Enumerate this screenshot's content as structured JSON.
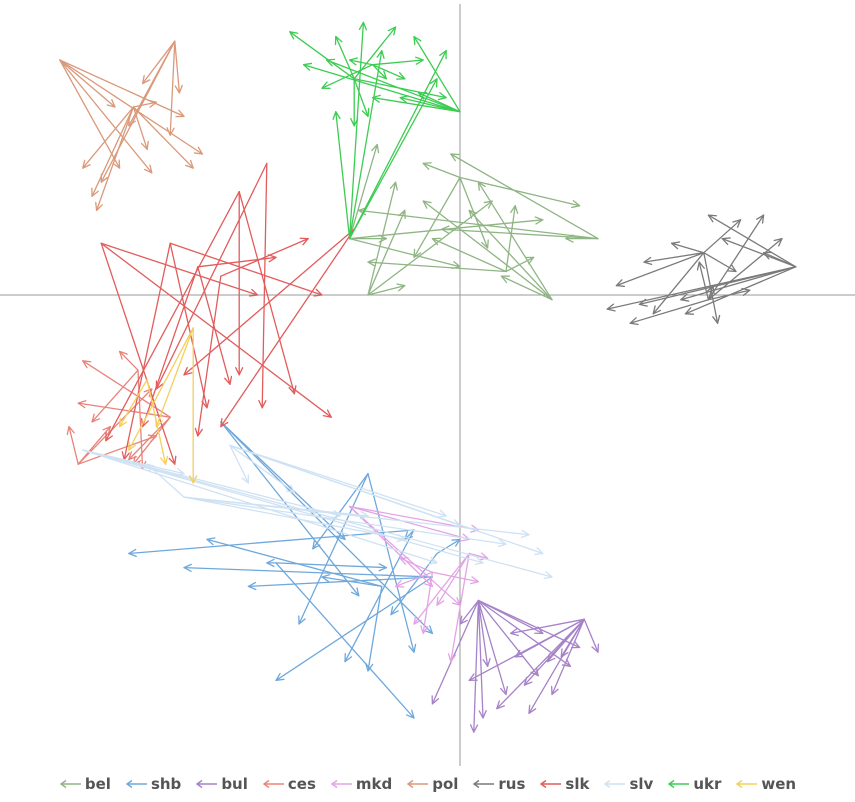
{
  "chart_data": {
    "type": "scatter",
    "title": "",
    "xlabel": "",
    "ylabel": "",
    "xlim": [
      -1.0,
      0.86
    ],
    "ylim": [
      -1.0,
      0.63
    ],
    "axes_through_origin": true,
    "grid": false,
    "legend_position": "bottom",
    "marker": "arrow",
    "legend": [
      "bel",
      "shb",
      "bul",
      "ces",
      "mkd",
      "pol",
      "rus",
      "slk",
      "slv",
      "ukr",
      "wen"
    ],
    "series": [
      {
        "name": "bel",
        "color": "#8fb584",
        "base": [
          [
            -0.24,
            0.12
          ],
          [
            0.0,
            0.25
          ],
          [
            0.3,
            0.12
          ],
          [
            0.2,
            -0.01
          ],
          [
            -0.2,
            0.0
          ],
          [
            0.1,
            0.05
          ]
        ],
        "tips": [
          [
            -0.18,
            0.32
          ],
          [
            -0.08,
            0.28
          ],
          [
            -0.02,
            0.3
          ],
          [
            0.04,
            0.24
          ],
          [
            -0.12,
            0.18
          ],
          [
            -0.2,
            0.07
          ],
          [
            -0.16,
            0.12
          ],
          [
            -0.1,
            0.08
          ],
          [
            -0.04,
            0.14
          ],
          [
            0.02,
            0.18
          ],
          [
            0.07,
            0.2
          ],
          [
            0.12,
            0.19
          ],
          [
            0.18,
            0.16
          ],
          [
            0.26,
            0.19
          ],
          [
            0.23,
            0.12
          ],
          [
            -0.08,
            0.2
          ],
          [
            -0.14,
            0.24
          ],
          [
            -0.06,
            0.12
          ],
          [
            0.0,
            0.06
          ],
          [
            0.06,
            0.1
          ],
          [
            -0.22,
            0.18
          ],
          [
            0.09,
            0.04
          ],
          [
            -0.12,
            0.02
          ],
          [
            0.16,
            0.08
          ]
        ]
      },
      {
        "name": "shb",
        "color": "#6fa8dc",
        "base": [
          [
            -0.1,
            -0.5
          ],
          [
            -0.06,
            -0.6
          ],
          [
            -0.4,
            -0.57
          ],
          [
            -0.17,
            -0.62
          ],
          [
            -0.52,
            -0.27
          ],
          [
            -0.2,
            -0.38
          ],
          [
            -0.05,
            -0.55
          ]
        ],
        "tips": [
          [
            -0.72,
            -0.55
          ],
          [
            -0.6,
            -0.58
          ],
          [
            -0.42,
            -0.57
          ],
          [
            -0.3,
            -0.6
          ],
          [
            -0.22,
            -0.64
          ],
          [
            -0.35,
            -0.7
          ],
          [
            -0.15,
            -0.68
          ],
          [
            -0.25,
            -0.78
          ],
          [
            -0.4,
            -0.82
          ],
          [
            -0.1,
            -0.9
          ],
          [
            -0.2,
            -0.8
          ],
          [
            -0.06,
            -0.72
          ],
          [
            -0.32,
            -0.54
          ],
          [
            0.0,
            -0.52
          ],
          [
            -0.12,
            -0.52
          ],
          [
            -0.46,
            -0.62
          ],
          [
            -0.16,
            -0.58
          ],
          [
            -0.55,
            -0.52
          ],
          [
            -0.25,
            -0.52
          ],
          [
            -0.1,
            -0.76
          ]
        ]
      },
      {
        "name": "bul",
        "color": "#a682c8",
        "base": [
          [
            0.04,
            -0.65
          ],
          [
            0.27,
            -0.69
          ]
        ],
        "tips": [
          [
            0.0,
            -0.7
          ],
          [
            0.02,
            -0.82
          ],
          [
            0.05,
            -0.9
          ],
          [
            0.08,
            -0.88
          ],
          [
            0.1,
            -0.85
          ],
          [
            0.14,
            -0.83
          ],
          [
            0.17,
            -0.81
          ],
          [
            0.2,
            -0.85
          ],
          [
            0.24,
            -0.79
          ],
          [
            0.3,
            -0.76
          ],
          [
            0.26,
            -0.75
          ],
          [
            0.12,
            -0.77
          ],
          [
            0.18,
            -0.72
          ],
          [
            0.22,
            -0.77
          ],
          [
            -0.06,
            -0.87
          ],
          [
            0.11,
            -0.72
          ],
          [
            0.06,
            -0.79
          ],
          [
            0.15,
            -0.89
          ],
          [
            0.03,
            -0.93
          ],
          [
            0.19,
            -0.78
          ]
        ]
      },
      {
        "name": "ces",
        "color": "#e8837a",
        "base": [
          [
            -0.83,
            -0.36
          ],
          [
            -0.63,
            -0.26
          ],
          [
            -0.7,
            -0.16
          ]
        ],
        "tips": [
          [
            -0.85,
            -0.28
          ],
          [
            -0.83,
            -0.23
          ],
          [
            -0.8,
            -0.27
          ],
          [
            -0.76,
            -0.28
          ],
          [
            -0.72,
            -0.35
          ],
          [
            -0.69,
            -0.37
          ],
          [
            -0.66,
            -0.3
          ],
          [
            -0.82,
            -0.14
          ],
          [
            -0.74,
            -0.12
          ],
          [
            -0.67,
            -0.2
          ],
          [
            -0.71,
            -0.36
          ]
        ]
      },
      {
        "name": "mkd",
        "color": "#e3a3e6",
        "base": [
          [
            -0.06,
            -0.59
          ],
          [
            0.02,
            -0.55
          ],
          [
            -0.24,
            -0.45
          ]
        ],
        "tips": [
          [
            -0.08,
            -0.72
          ],
          [
            -0.05,
            -0.66
          ],
          [
            0.0,
            -0.66
          ],
          [
            0.04,
            -0.61
          ],
          [
            0.06,
            -0.56
          ],
          [
            0.02,
            -0.52
          ],
          [
            -0.14,
            -0.62
          ],
          [
            -0.1,
            -0.7
          ],
          [
            -0.06,
            -0.62
          ],
          [
            -0.13,
            -0.56
          ],
          [
            -0.02,
            -0.78
          ],
          [
            0.04,
            -0.5
          ]
        ]
      },
      {
        "name": "pol",
        "color": "#d9997a",
        "base": [
          [
            -0.71,
            0.4
          ],
          [
            -0.62,
            0.54
          ],
          [
            -0.87,
            0.5
          ]
        ],
        "tips": [
          [
            -0.8,
            0.21
          ],
          [
            -0.78,
            0.24
          ],
          [
            -0.74,
            0.27
          ],
          [
            -0.68,
            0.31
          ],
          [
            -0.63,
            0.34
          ],
          [
            -0.6,
            0.38
          ],
          [
            -0.66,
            0.41
          ],
          [
            -0.72,
            0.36
          ],
          [
            -0.67,
            0.26
          ],
          [
            -0.79,
            0.18
          ],
          [
            -0.69,
            0.45
          ],
          [
            -0.75,
            0.4
          ],
          [
            -0.58,
            0.27
          ],
          [
            -0.61,
            0.43
          ],
          [
            -0.56,
            0.3
          ],
          [
            -0.82,
            0.27
          ]
        ]
      },
      {
        "name": "rus",
        "color": "#7a7a7a",
        "base": [
          [
            0.53,
            0.09
          ],
          [
            0.73,
            0.06
          ],
          [
            0.54,
            -0.01
          ]
        ],
        "tips": [
          [
            0.34,
            0.02
          ],
          [
            0.32,
            -0.03
          ],
          [
            0.37,
            -0.06
          ],
          [
            0.42,
            -0.04
          ],
          [
            0.48,
            -0.01
          ],
          [
            0.55,
            0.02
          ],
          [
            0.6,
            0.05
          ],
          [
            0.66,
            0.09
          ],
          [
            0.7,
            0.12
          ],
          [
            0.61,
            0.16
          ],
          [
            0.57,
            0.12
          ],
          [
            0.52,
            0.07
          ],
          [
            0.46,
            0.11
          ],
          [
            0.54,
            0.17
          ],
          [
            0.63,
            0.01
          ],
          [
            0.56,
            -0.06
          ],
          [
            0.49,
            -0.04
          ],
          [
            0.66,
            0.17
          ],
          [
            0.4,
            0.07
          ],
          [
            0.39,
            -0.02
          ]
        ]
      },
      {
        "name": "slk",
        "color": "#e25c5c",
        "base": [
          [
            -0.48,
            0.22
          ],
          [
            -0.63,
            0.11
          ],
          [
            -0.57,
            0.06
          ],
          [
            -0.78,
            0.11
          ],
          [
            -0.52,
            0.04
          ],
          [
            -0.23,
            0.14
          ],
          [
            -0.42,
            0.28
          ]
        ],
        "tips": [
          [
            -0.77,
            -0.31
          ],
          [
            -0.73,
            -0.35
          ],
          [
            -0.69,
            -0.28
          ],
          [
            -0.62,
            -0.36
          ],
          [
            -0.57,
            -0.3
          ],
          [
            -0.52,
            -0.28
          ],
          [
            -0.43,
            -0.24
          ],
          [
            -0.36,
            -0.21
          ],
          [
            -0.3,
            0.0
          ],
          [
            -0.4,
            0.08
          ],
          [
            -0.44,
            0.0
          ],
          [
            -0.33,
            0.12
          ],
          [
            -0.6,
            -0.17
          ],
          [
            -0.66,
            -0.2
          ],
          [
            -0.48,
            -0.17
          ],
          [
            -0.55,
            -0.24
          ],
          [
            -0.5,
            -0.19
          ],
          [
            -0.28,
            -0.26
          ]
        ]
      },
      {
        "name": "slv",
        "color": "#cfe2f3",
        "base": [
          [
            -0.82,
            -0.33
          ],
          [
            -0.5,
            -0.32
          ],
          [
            -0.6,
            -0.43
          ]
        ],
        "tips": [
          [
            -0.05,
            -0.57
          ],
          [
            0.0,
            -0.49
          ],
          [
            0.1,
            -0.53
          ],
          [
            0.2,
            -0.6
          ],
          [
            0.18,
            -0.55
          ],
          [
            0.15,
            -0.51
          ],
          [
            0.05,
            -0.57
          ],
          [
            -0.03,
            -0.47
          ],
          [
            -0.12,
            -0.52
          ],
          [
            -0.26,
            -0.47
          ],
          [
            -0.36,
            -0.42
          ],
          [
            -0.68,
            -0.36
          ],
          [
            -0.6,
            -0.38
          ],
          [
            -0.46,
            -0.4
          ],
          [
            -0.2,
            -0.47
          ]
        ]
      },
      {
        "name": "ukr",
        "color": "#3ccc52",
        "base": [
          [
            -0.23,
            0.46
          ],
          [
            0.0,
            0.39
          ],
          [
            -0.19,
            0.49
          ],
          [
            -0.24,
            0.12
          ]
        ],
        "tips": [
          [
            -0.37,
            0.56
          ],
          [
            -0.34,
            0.49
          ],
          [
            -0.3,
            0.44
          ],
          [
            -0.27,
            0.39
          ],
          [
            -0.23,
            0.36
          ],
          [
            -0.19,
            0.42
          ],
          [
            -0.24,
            0.5
          ],
          [
            -0.17,
            0.52
          ],
          [
            -0.14,
            0.57
          ],
          [
            -0.1,
            0.55
          ],
          [
            -0.08,
            0.5
          ],
          [
            -0.05,
            0.46
          ],
          [
            -0.03,
            0.42
          ],
          [
            -0.13,
            0.42
          ],
          [
            -0.16,
            0.46
          ],
          [
            -0.21,
            0.58
          ],
          [
            -0.27,
            0.55
          ],
          [
            -0.29,
            0.5
          ],
          [
            -0.12,
            0.46
          ],
          [
            -0.03,
            0.52
          ],
          [
            -0.2,
            0.38
          ],
          [
            -0.09,
            0.43
          ]
        ]
      },
      {
        "name": "wen",
        "color": "#f5cf5a",
        "base": [
          [
            -0.58,
            -0.07
          ],
          [
            -0.68,
            -0.18
          ]
        ],
        "tips": [
          [
            -0.72,
            -0.33
          ],
          [
            -0.64,
            -0.36
          ],
          [
            -0.58,
            -0.4
          ],
          [
            -0.74,
            -0.28
          ],
          [
            -0.66,
            -0.28
          ]
        ]
      }
    ]
  }
}
